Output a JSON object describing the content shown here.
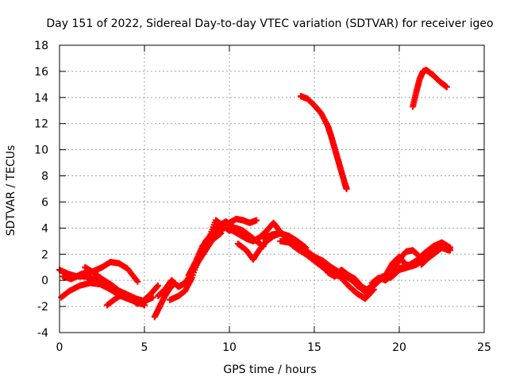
{
  "chart_data": {
    "type": "scatter",
    "title": "Day 151 of 2022, Sidereal Day-to-day VTEC variation (SDTVAR) for receiver igeo",
    "xlabel": "GPS time / hours",
    "ylabel": "SDTVAR / TECUs",
    "xlim": [
      0,
      25
    ],
    "ylim": [
      -4,
      18
    ],
    "xticks": [
      0,
      5,
      10,
      15,
      20,
      25
    ],
    "yticks": [
      -4,
      -2,
      0,
      2,
      4,
      6,
      8,
      10,
      12,
      14,
      16,
      18
    ],
    "grid": true,
    "marker": "+",
    "color": "#ff0000",
    "series": [
      {
        "name": "s1",
        "x": [
          0.0,
          0.5,
          1.0,
          1.5,
          2.0,
          2.5,
          3.0,
          3.5,
          4.0,
          4.5,
          5.0
        ],
        "y": [
          0.8,
          0.5,
          0.3,
          0.3,
          0.1,
          -0.2,
          -0.6,
          -0.9,
          -1.2,
          -1.5,
          -1.9
        ]
      },
      {
        "name": "s2",
        "x": [
          0.1,
          0.6,
          1.2,
          1.8,
          2.4,
          3.0,
          3.6,
          4.2,
          4.8
        ],
        "y": [
          -1.3,
          -0.8,
          -0.4,
          -0.2,
          -0.3,
          -0.7,
          -1.2,
          -1.5,
          -1.8
        ]
      },
      {
        "name": "s3",
        "x": [
          0.2,
          0.7,
          1.3,
          2.0,
          2.5,
          3.0,
          3.5,
          4.0,
          4.6
        ],
        "y": [
          0.3,
          0.1,
          0.5,
          0.7,
          1.0,
          1.4,
          1.3,
          0.9,
          -0.1
        ]
      },
      {
        "name": "s4",
        "x": [
          1.5,
          2.0,
          2.5,
          3.0,
          3.5,
          4.0,
          4.5,
          5.0,
          5.5
        ],
        "y": [
          1.0,
          0.6,
          0.1,
          -0.3,
          -0.8,
          -1.1,
          -1.4,
          -1.6,
          -1.3
        ]
      },
      {
        "name": "s5",
        "x": [
          2.8,
          3.3,
          3.8,
          4.2,
          4.6,
          5.0,
          5.4,
          5.8
        ],
        "y": [
          -1.9,
          -1.4,
          -1.0,
          -1.4,
          -1.8,
          -1.5,
          -1.0,
          -0.4
        ]
      },
      {
        "name": "s6",
        "x": [
          5.6,
          5.9,
          6.2,
          6.5,
          6.8
        ],
        "y": [
          -2.8,
          -2.0,
          -1.2,
          -0.6,
          -0.2
        ]
      },
      {
        "name": "s7",
        "x": [
          5.8,
          6.2,
          6.6,
          7.0,
          7.4,
          7.8,
          8.2,
          8.6,
          9.0,
          9.5
        ],
        "y": [
          -1.2,
          -0.7,
          0.0,
          -0.5,
          -0.2,
          0.6,
          1.5,
          2.3,
          3.1,
          3.6
        ]
      },
      {
        "name": "s8",
        "x": [
          6.5,
          7.0,
          7.4,
          7.8,
          8.2,
          8.6,
          9.0,
          9.4,
          9.8,
          10.2,
          10.6
        ],
        "y": [
          -1.5,
          -1.2,
          -0.8,
          0.2,
          1.8,
          3.0,
          3.6,
          4.2,
          4.5,
          4.1,
          3.7
        ]
      },
      {
        "name": "s9",
        "x": [
          7.6,
          8.0,
          8.4,
          8.8,
          9.2,
          9.6,
          10.0,
          10.4,
          10.8,
          11.2,
          11.6
        ],
        "y": [
          0.4,
          1.4,
          2.6,
          3.2,
          3.5,
          3.9,
          4.4,
          4.7,
          4.6,
          4.4,
          4.6
        ]
      },
      {
        "name": "s10",
        "x": [
          8.0,
          8.4,
          8.8,
          9.2,
          9.6,
          10.0,
          10.4,
          10.8,
          11.2,
          11.6,
          12.0
        ],
        "y": [
          1.0,
          2.2,
          3.2,
          4.6,
          4.2,
          3.8,
          4.0,
          3.8,
          3.4,
          3.0,
          2.6
        ]
      },
      {
        "name": "s11",
        "x": [
          10.2,
          10.6,
          11.0,
          11.4,
          11.8,
          12.2,
          12.6,
          13.0,
          13.4
        ],
        "y": [
          3.8,
          3.5,
          3.2,
          3.0,
          3.3,
          3.8,
          4.4,
          3.7,
          3.2
        ]
      },
      {
        "name": "s12",
        "x": [
          10.5,
          11.0,
          11.4,
          11.8,
          12.2,
          12.6,
          13.0,
          13.5,
          14.0,
          14.5
        ],
        "y": [
          2.8,
          2.3,
          1.6,
          2.4,
          3.0,
          3.4,
          3.6,
          3.4,
          3.0,
          2.5
        ]
      },
      {
        "name": "s13",
        "x": [
          12.0,
          12.5,
          13.0,
          13.5,
          14.0,
          14.5,
          15.0,
          15.5,
          16.0,
          16.5,
          17.0,
          17.5,
          18.0
        ],
        "y": [
          3.2,
          3.5,
          3.6,
          3.2,
          2.8,
          2.3,
          1.8,
          1.5,
          1.0,
          0.6,
          0.2,
          -0.3,
          -0.9
        ]
      },
      {
        "name": "s14",
        "x": [
          13.0,
          13.5,
          14.0,
          14.5,
          15.0,
          15.5,
          16.0,
          16.5,
          17.0,
          17.5,
          18.0,
          18.5
        ],
        "y": [
          3.0,
          2.9,
          2.4,
          2.0,
          1.5,
          1.0,
          0.5,
          0.3,
          -0.4,
          -1.0,
          -1.4,
          -0.7
        ]
      },
      {
        "name": "s15",
        "x": [
          14.5,
          15.0,
          15.4,
          15.8,
          16.2,
          16.6,
          17.0,
          17.4,
          17.8,
          18.2,
          18.6,
          19.0
        ],
        "y": [
          2.2,
          1.8,
          1.5,
          0.6,
          0.3,
          0.8,
          0.4,
          0.1,
          -0.5,
          -0.8,
          -0.3,
          0.2
        ]
      },
      {
        "name": "s16",
        "x": [
          14.2,
          14.6,
          15.0,
          15.4,
          15.8,
          16.0,
          16.2,
          16.4,
          16.6,
          16.8,
          16.9
        ],
        "y": [
          14.1,
          13.9,
          13.4,
          12.8,
          11.8,
          11.0,
          10.1,
          9.2,
          8.3,
          7.4,
          7.0
        ]
      },
      {
        "name": "s17",
        "x": [
          17.5,
          18.0,
          18.5,
          19.0,
          19.5,
          20.0,
          20.5,
          21.0,
          21.5,
          22.0
        ],
        "y": [
          -0.4,
          -0.8,
          -0.3,
          0.3,
          0.2,
          0.8,
          1.0,
          1.2,
          1.6,
          2.1
        ]
      },
      {
        "name": "s18",
        "x": [
          18.4,
          18.8,
          19.2,
          19.6,
          20.0,
          20.4,
          20.8,
          21.2,
          21.6
        ],
        "y": [
          -0.2,
          0.2,
          0.0,
          0.5,
          1.6,
          2.2,
          2.3,
          1.8,
          1.6
        ]
      },
      {
        "name": "s19",
        "x": [
          19.2,
          19.6,
          20.0,
          20.4,
          20.8,
          21.2,
          21.6,
          22.0,
          22.4,
          22.8,
          23.0
        ],
        "y": [
          0.4,
          1.3,
          1.8,
          1.2,
          1.1,
          1.6,
          2.0,
          2.5,
          2.8,
          2.6,
          2.3
        ]
      },
      {
        "name": "s20",
        "x": [
          20.0,
          20.5,
          21.0,
          21.5,
          22.0,
          22.5,
          23.0
        ],
        "y": [
          0.9,
          1.1,
          1.5,
          2.1,
          2.6,
          2.9,
          2.5
        ]
      },
      {
        "name": "s21",
        "x": [
          21.3,
          21.7,
          22.1,
          22.5,
          22.9
        ],
        "y": [
          1.2,
          1.7,
          2.1,
          2.5,
          2.3
        ]
      },
      {
        "name": "s22",
        "x": [
          20.8,
          21.0,
          21.2,
          21.4,
          21.6,
          22.0,
          22.4,
          22.8
        ],
        "y": [
          13.3,
          14.4,
          15.4,
          16.0,
          16.1,
          15.7,
          15.2,
          14.8
        ]
      }
    ]
  }
}
